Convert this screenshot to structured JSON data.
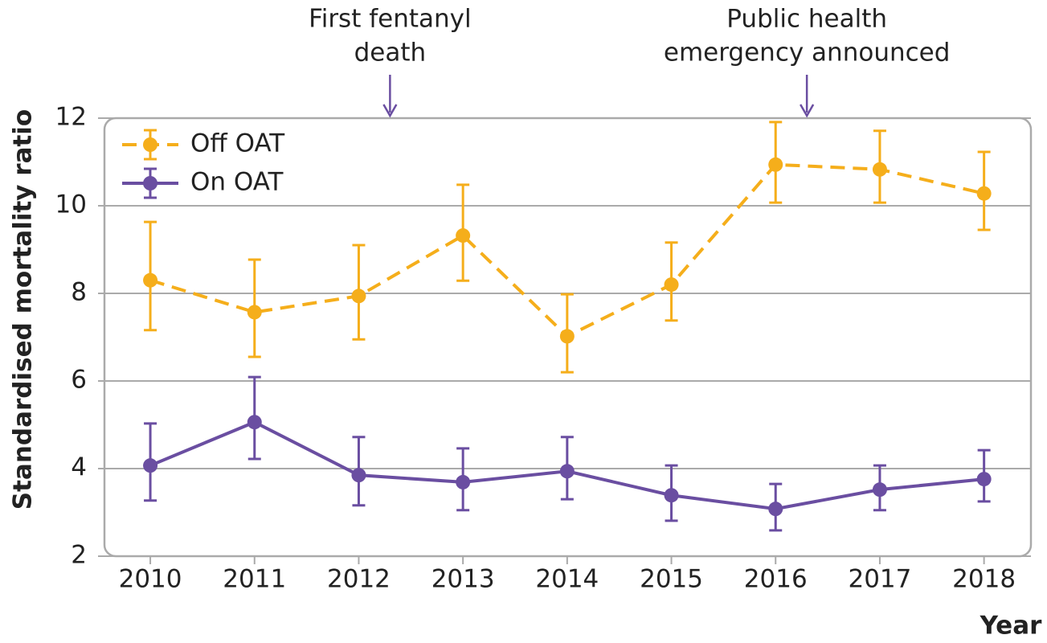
{
  "chart_data": {
    "type": "line",
    "x_label": "Year",
    "y_label": "Standardised mortality ratio",
    "x": [
      2010,
      2011,
      2012,
      2013,
      2014,
      2015,
      2016,
      2017,
      2018
    ],
    "xlim": [
      2009.56,
      2018.45
    ],
    "xticks": [
      2010,
      2011,
      2012,
      2013,
      2014,
      2015,
      2016,
      2017,
      2018
    ],
    "ylim": [
      2,
      12
    ],
    "yticks": [
      2,
      4,
      6,
      8,
      10,
      12
    ],
    "grid": true,
    "legend": "upper left",
    "series": [
      {
        "name": "Off OAT",
        "color": "#f5ae1b",
        "dashed": true,
        "values": [
          8.3,
          7.57,
          7.94,
          9.32,
          7.02,
          8.2,
          10.94,
          10.83,
          10.28
        ],
        "ci_lower": [
          7.16,
          6.55,
          6.95,
          8.29,
          6.2,
          7.38,
          10.07,
          10.07,
          9.45
        ],
        "ci_upper": [
          9.63,
          8.77,
          9.1,
          10.48,
          7.98,
          9.16,
          11.91,
          11.71,
          11.23
        ]
      },
      {
        "name": "On OAT",
        "color": "#6a4ea1",
        "dashed": false,
        "values": [
          4.07,
          5.06,
          3.85,
          3.69,
          3.94,
          3.39,
          3.08,
          3.52,
          3.76
        ],
        "ci_lower": [
          3.27,
          4.22,
          3.16,
          3.05,
          3.3,
          2.81,
          2.59,
          3.05,
          3.25
        ],
        "ci_upper": [
          5.03,
          6.09,
          4.72,
          4.46,
          4.72,
          4.07,
          3.65,
          4.07,
          4.42
        ]
      }
    ],
    "annotations": [
      {
        "x": 2012.3,
        "lines": [
          "First fentanyl",
          "death"
        ]
      },
      {
        "x": 2016.3,
        "lines": [
          "Public health",
          "emergency announced"
        ]
      }
    ]
  }
}
